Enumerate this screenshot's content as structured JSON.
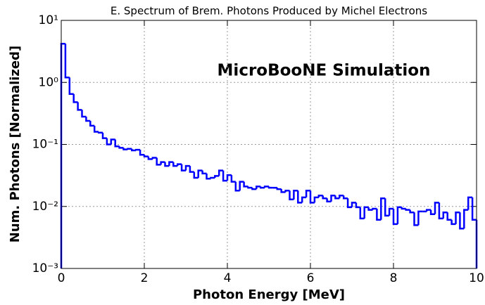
{
  "chart_data": {
    "type": "histogram",
    "title": "E. Spectrum of Brem. Photons Produced by Michel Electrons",
    "annotation": "MicroBooNE Simulation",
    "x_label": "Photon Energy [MeV]",
    "y_label": "Num. Photons [Normalized]",
    "color": "#0000ff",
    "log_y": true,
    "grid": true,
    "xlim": [
      0,
      10
    ],
    "ylim": [
      0.001,
      10
    ],
    "xticks": [
      0,
      2,
      4,
      6,
      8,
      10
    ],
    "yticks": [
      {
        "value": 0.001,
        "label": "10⁻³"
      },
      {
        "value": 0.01,
        "label": "10⁻²"
      },
      {
        "value": 0.1,
        "label": "10⁻¹"
      },
      {
        "value": 1,
        "label": "10⁰"
      },
      {
        "value": 10,
        "label": "10¹"
      }
    ],
    "bins": [
      0,
      0.1,
      0.2,
      0.3,
      0.4,
      0.5,
      0.6,
      0.7,
      0.8,
      0.9,
      1,
      1.1,
      1.2,
      1.3,
      1.4,
      1.5,
      1.6,
      1.7,
      1.8,
      1.9,
      2,
      2.1,
      2.2,
      2.3,
      2.4,
      2.5,
      2.6,
      2.7,
      2.8,
      2.9,
      3,
      3.1,
      3.2,
      3.3,
      3.4,
      3.5,
      3.6,
      3.7,
      3.8,
      3.9,
      4,
      4.1,
      4.2,
      4.3,
      4.4,
      4.5,
      4.6,
      4.7,
      4.8,
      4.9,
      5,
      5.1,
      5.2,
      5.3,
      5.4,
      5.5,
      5.6,
      5.7,
      5.8,
      5.9,
      6,
      6.1,
      6.2,
      6.3,
      6.4,
      6.5,
      6.6,
      6.7,
      6.8,
      6.9,
      7,
      7.1,
      7.2,
      7.3,
      7.4,
      7.5,
      7.6,
      7.7,
      7.8,
      7.9,
      8,
      8.1,
      8.2,
      8.3,
      8.4,
      8.5,
      8.6,
      8.7,
      8.8,
      8.9,
      9,
      9.1,
      9.2,
      9.3,
      9.4,
      9.5,
      9.6,
      9.7,
      9.8,
      9.9,
      10
    ],
    "values": [
      4.2,
      1.2,
      0.65,
      0.48,
      0.36,
      0.28,
      0.24,
      0.2,
      0.16,
      0.155,
      0.126,
      0.1,
      0.12,
      0.093,
      0.088,
      0.083,
      0.085,
      0.08,
      0.082,
      0.068,
      0.064,
      0.058,
      0.061,
      0.047,
      0.052,
      0.045,
      0.052,
      0.045,
      0.048,
      0.038,
      0.045,
      0.036,
      0.029,
      0.038,
      0.034,
      0.028,
      0.029,
      0.031,
      0.038,
      0.026,
      0.032,
      0.025,
      0.018,
      0.025,
      0.021,
      0.02,
      0.019,
      0.021,
      0.02,
      0.021,
      0.02,
      0.02,
      0.019,
      0.017,
      0.018,
      0.013,
      0.018,
      0.0115,
      0.014,
      0.018,
      0.0115,
      0.014,
      0.015,
      0.0135,
      0.012,
      0.015,
      0.0135,
      0.015,
      0.0135,
      0.0097,
      0.0115,
      0.0097,
      0.0064,
      0.0097,
      0.0088,
      0.0092,
      0.0061,
      0.0135,
      0.0071,
      0.0092,
      0.0052,
      0.0097,
      0.0092,
      0.0088,
      0.008,
      0.005,
      0.0083,
      0.0083,
      0.0088,
      0.0075,
      0.0115,
      0.0064,
      0.008,
      0.0061,
      0.0052,
      0.008,
      0.0044,
      0.0088,
      0.014,
      0.0061
    ]
  }
}
